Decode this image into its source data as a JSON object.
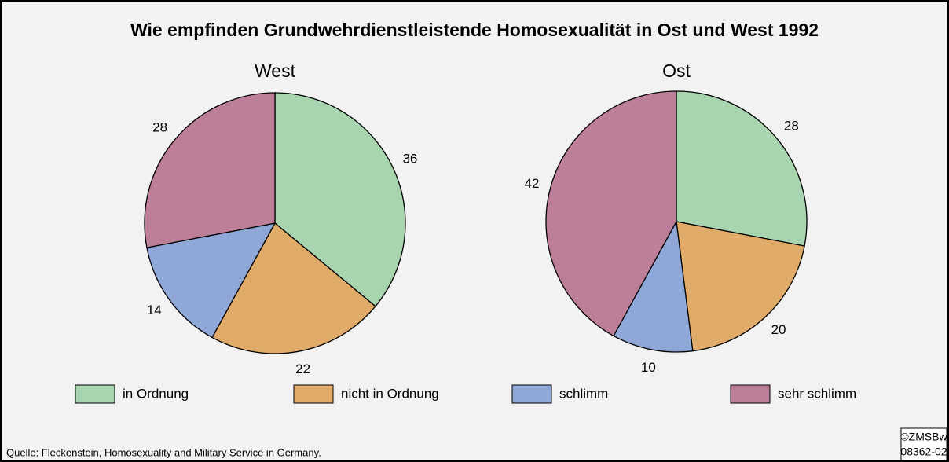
{
  "title": "Wie empfinden Grundwehrdienstleistende Homosexualität in Ost und West 1992",
  "source": "Quelle: Fleckenstein, Homosexuality and Military Service in Germany.",
  "copyright": [
    "©ZMSBw",
    "08362-02"
  ],
  "chart_data": [
    {
      "type": "pie",
      "title": "West",
      "categories": [
        "in Ordnung",
        "nicht in Ordnung",
        "schlimm",
        "sehr schlimm"
      ],
      "values": [
        36,
        22,
        14,
        28
      ],
      "colors": [
        "#a8d5b0",
        "#e0aa68",
        "#8fa8d8",
        "#bd7e9a"
      ]
    },
    {
      "type": "pie",
      "title": "Ost",
      "categories": [
        "in Ordnung",
        "nicht in Ordnung",
        "schlimm",
        "sehr schlimm"
      ],
      "values": [
        28,
        20,
        10,
        42
      ],
      "colors": [
        "#a8d5b0",
        "#e0aa68",
        "#8fa8d8",
        "#bd7e9a"
      ]
    }
  ]
}
